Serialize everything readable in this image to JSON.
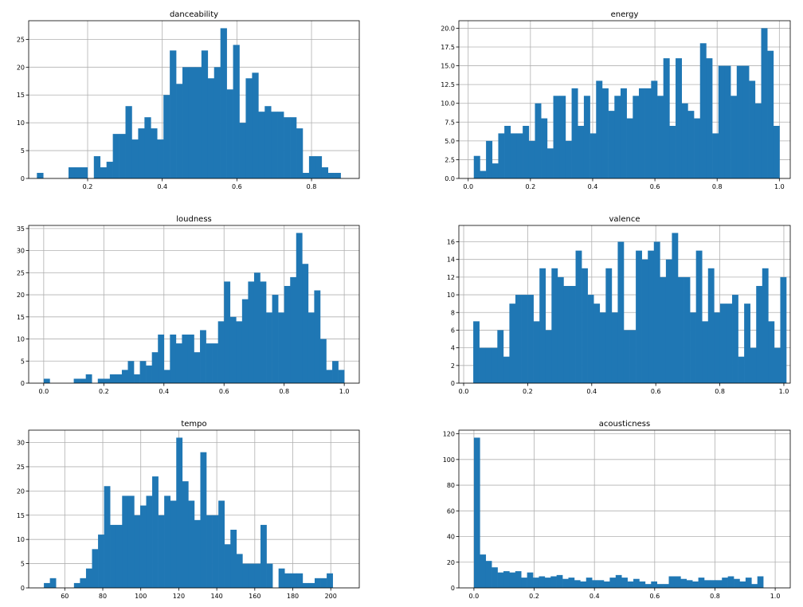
{
  "colors": {
    "bar": "#1f77b4",
    "grid": "#b0b0b0"
  },
  "chart_data": [
    {
      "type": "bar",
      "title": "danceability",
      "grid": true,
      "xlim": [
        0.042,
        0.928
      ],
      "ylim": [
        0,
        28.35
      ],
      "xticks": [
        0.2,
        0.4,
        0.6,
        0.8
      ],
      "xtick_labels": [
        "0.2",
        "0.4",
        "0.6",
        "0.8"
      ],
      "yticks": [
        0,
        5,
        10,
        15,
        20,
        25
      ],
      "ytick_labels": [
        "0",
        "5",
        "10",
        "15",
        "20",
        "25"
      ],
      "bin_start": 0.064,
      "bin_width": 0.01696,
      "values": [
        1,
        0,
        0,
        0,
        0,
        2,
        2,
        2,
        0,
        4,
        2,
        3,
        8,
        8,
        13,
        7,
        9,
        11,
        9,
        7,
        15,
        23,
        17,
        20,
        20,
        20,
        23,
        18,
        20,
        27,
        16,
        24,
        10,
        18,
        19,
        12,
        13,
        12,
        12,
        11,
        11,
        9,
        1,
        4,
        4,
        2,
        1,
        1
      ]
    },
    {
      "type": "bar",
      "title": "energy",
      "grid": true,
      "xlim": [
        -0.03,
        1.035
      ],
      "ylim": [
        0,
        21.0
      ],
      "xticks": [
        0.0,
        0.2,
        0.4,
        0.6,
        0.8,
        1.0
      ],
      "xtick_labels": [
        "0.0",
        "0.2",
        "0.4",
        "0.6",
        "0.8",
        "1.0"
      ],
      "yticks": [
        0,
        2.5,
        5,
        7.5,
        10,
        12.5,
        15,
        17.5,
        20
      ],
      "ytick_labels": [
        "0.0",
        "2.5",
        "5.0",
        "7.5",
        "10.0",
        "12.5",
        "15.0",
        "17.5",
        "20.0"
      ],
      "bin_start": 0.018,
      "bin_width": 0.01965,
      "values": [
        3,
        1,
        5,
        2,
        6,
        7,
        6,
        6,
        7,
        5,
        10,
        8,
        4,
        11,
        11,
        5,
        12,
        7,
        11,
        6,
        13,
        12,
        9,
        11,
        12,
        8,
        11,
        12,
        12,
        13,
        11,
        16,
        7,
        16,
        10,
        9,
        8,
        18,
        16,
        6,
        15,
        15,
        11,
        15,
        15,
        13,
        10,
        20,
        17,
        7
      ]
    },
    {
      "type": "bar",
      "title": "loudness",
      "grid": true,
      "xlim": [
        -0.05,
        1.05
      ],
      "ylim": [
        0,
        35.7
      ],
      "xticks": [
        0.0,
        0.2,
        0.4,
        0.6,
        0.8,
        1.0
      ],
      "xtick_labels": [
        "0.0",
        "0.2",
        "0.4",
        "0.6",
        "0.8",
        "1.0"
      ],
      "yticks": [
        0,
        5,
        10,
        15,
        20,
        25,
        30,
        35
      ],
      "ytick_labels": [
        "0",
        "5",
        "10",
        "15",
        "20",
        "25",
        "30",
        "35"
      ],
      "bin_start": 0.0,
      "bin_width": 0.02,
      "values": [
        1,
        0,
        0,
        0,
        0,
        1,
        1,
        2,
        0,
        1,
        1,
        2,
        2,
        3,
        5,
        2,
        5,
        4,
        7,
        11,
        3,
        11,
        9,
        11,
        11,
        7,
        12,
        9,
        9,
        14,
        23,
        15,
        14,
        19,
        23,
        25,
        23,
        16,
        20,
        16,
        22,
        24,
        34,
        27,
        16,
        21,
        10,
        3,
        5,
        3
      ]
    },
    {
      "type": "bar",
      "title": "valence",
      "grid": true,
      "xlim": [
        -0.015,
        1.02
      ],
      "ylim": [
        0,
        17.85
      ],
      "xticks": [
        0.0,
        0.2,
        0.4,
        0.6,
        0.8,
        1.0
      ],
      "xtick_labels": [
        "0.0",
        "0.2",
        "0.4",
        "0.6",
        "0.8",
        "1.0"
      ],
      "yticks": [
        0,
        2,
        4,
        6,
        8,
        10,
        12,
        14,
        16
      ],
      "ytick_labels": [
        "0",
        "2",
        "4",
        "6",
        "8",
        "10",
        "12",
        "14",
        "16"
      ],
      "bin_start": 0.03,
      "bin_width": 0.0188,
      "values": [
        7,
        4,
        4,
        4,
        6,
        3,
        9,
        10,
        10,
        10,
        7,
        13,
        6,
        13,
        12,
        11,
        11,
        15,
        13,
        10,
        9,
        8,
        13,
        8,
        16,
        6,
        6,
        15,
        14,
        15,
        16,
        12,
        14,
        17,
        12,
        12,
        8,
        15,
        7,
        13,
        8,
        9,
        9,
        10,
        3,
        9,
        4,
        11,
        13,
        7,
        4,
        12
      ]
    },
    {
      "type": "bar",
      "title": "tempo",
      "grid": true,
      "xlim": [
        41,
        215
      ],
      "ylim": [
        0,
        32.55
      ],
      "xticks": [
        60,
        80,
        100,
        120,
        140,
        160,
        180,
        200
      ],
      "xtick_labels": [
        "60",
        "80",
        "100",
        "120",
        "140",
        "160",
        "180",
        "200"
      ],
      "yticks": [
        0,
        5,
        10,
        15,
        20,
        25,
        30
      ],
      "ytick_labels": [
        "0",
        "5",
        "10",
        "15",
        "20",
        "25",
        "30"
      ],
      "bin_start": 49,
      "bin_width": 3.167,
      "values": [
        1,
        2,
        0,
        0,
        0,
        1,
        2,
        4,
        8,
        11,
        21,
        13,
        13,
        19,
        19,
        15,
        17,
        19,
        23,
        15,
        19,
        18,
        31,
        22,
        18,
        14,
        28,
        15,
        15,
        18,
        9,
        12,
        7,
        5,
        5,
        5,
        13,
        5,
        0,
        4,
        3,
        3,
        3,
        1,
        1,
        2,
        2,
        3
      ]
    },
    {
      "type": "bar",
      "title": "acousticness",
      "grid": true,
      "xlim": [
        -0.05,
        1.05
      ],
      "ylim": [
        0,
        122.85
      ],
      "xticks": [
        0.0,
        0.2,
        0.4,
        0.6,
        0.8,
        1.0
      ],
      "xtick_labels": [
        "0.0",
        "0.2",
        "0.4",
        "0.6",
        "0.8",
        "1.0"
      ],
      "yticks": [
        0,
        20,
        40,
        60,
        80,
        100,
        120
      ],
      "ytick_labels": [
        "0",
        "20",
        "40",
        "60",
        "80",
        "100",
        "120"
      ],
      "bin_start": 0.0,
      "bin_width": 0.0196,
      "values": [
        117,
        26,
        21,
        16,
        12,
        13,
        12,
        13,
        8,
        12,
        8,
        9,
        8,
        9,
        10,
        7,
        8,
        6,
        5,
        8,
        6,
        6,
        5,
        8,
        10,
        8,
        5,
        7,
        5,
        3,
        5,
        3,
        3,
        9,
        9,
        7,
        6,
        5,
        8,
        6,
        6,
        6,
        8,
        9,
        7,
        5,
        8,
        3,
        9
      ]
    }
  ]
}
